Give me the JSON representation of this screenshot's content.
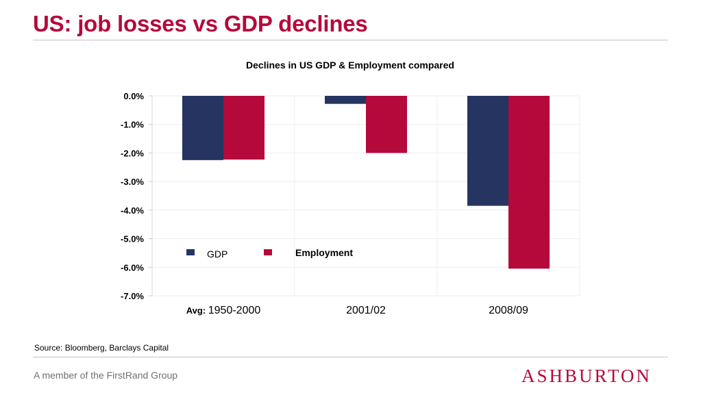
{
  "slide": {
    "title": "US: job losses vs GDP declines",
    "source": "Source: Bloomberg, Barclays Capital",
    "footer": "A member of the FirstRand Group",
    "logo_text": "ASHBURTON"
  },
  "colors": {
    "title": "#b5093c",
    "gdp": "#253461",
    "employment": "#b5093c",
    "footer_text": "#707070"
  },
  "chart_data": {
    "type": "bar",
    "title": "Declines in US GDP & Employment compared",
    "category_prefix": "Avg:",
    "categories": [
      "1950-2000",
      "2001/02",
      "2008/09"
    ],
    "series": [
      {
        "name": "GDP",
        "color": "#253461",
        "values": [
          -2.25,
          -0.28,
          -3.85
        ]
      },
      {
        "name": "Employment",
        "color": "#b5093c",
        "values": [
          -2.23,
          -2.0,
          -6.05
        ]
      }
    ],
    "ylim": [
      -7.0,
      0.0
    ],
    "yticks": [
      0,
      -1,
      -2,
      -3,
      -4,
      -5,
      -6,
      -7
    ],
    "ytick_labels": [
      "0.0%",
      "-1.0%",
      "-2.0%",
      "-3.0%",
      "-4.0%",
      "-5.0%",
      "-6.0%",
      "-7.0%"
    ],
    "grid": true,
    "legend_position": "lower-left inside plot"
  }
}
